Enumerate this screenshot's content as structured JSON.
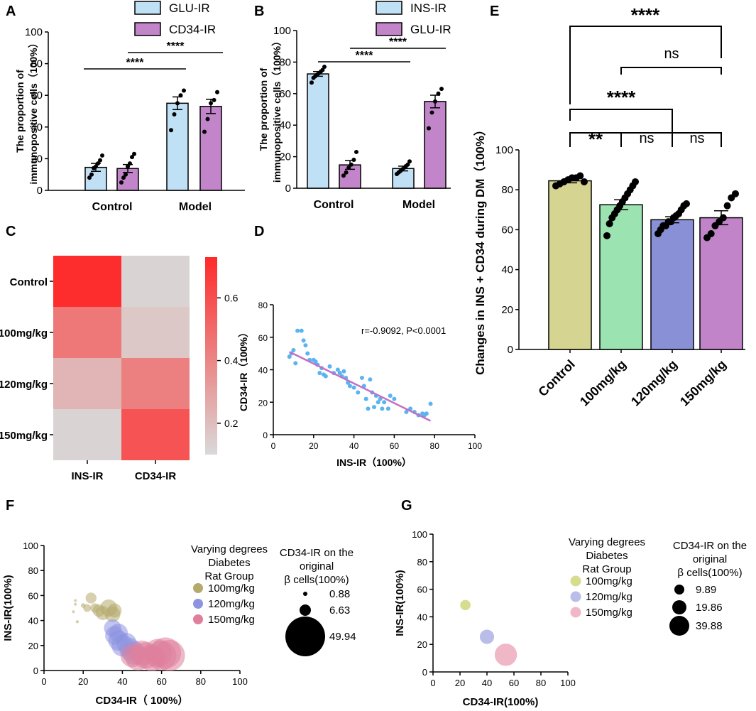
{
  "colors": {
    "glu": "#bfe0f5",
    "cd34": "#c285c9",
    "control_e": "#d6d491",
    "g100": "#9be3b0",
    "g120": "#8a90d6",
    "g150": "#c284c9",
    "heat_high": "#ff2a2a",
    "heat_low": "#d9d9d9",
    "scatter": "#5ab4f0",
    "fit": "#c46ec6",
    "bub100": "#b5aa6e",
    "bub120": "#8d93e0",
    "bub150": "#df7f9d",
    "g_bub100": "#d6dd8f",
    "g_bub120": "#b9bde8",
    "g_bub150": "#f0b8c6"
  },
  "chart_data": [
    {
      "panel": "A",
      "type": "bar",
      "ylabel_line1": "The proportion of",
      "ylabel_line2": "immunopositive cells（100%）",
      "categories": [
        "Control",
        "Model"
      ],
      "ylim": [
        0,
        100
      ],
      "yticks": [
        "0",
        "20",
        "40",
        "60",
        "80",
        "100"
      ],
      "series": [
        {
          "name": "GLU-IR",
          "values": [
            14.5,
            55
          ],
          "errors": [
            2.5,
            4
          ],
          "points": [
            [
              8,
              10,
              14,
              15,
              17,
              19,
              22
            ],
            [
              38,
              48,
              55,
              60,
              63
            ]
          ]
        },
        {
          "name": "CD34-IR",
          "values": [
            13.8,
            53
          ],
          "errors": [
            2.5,
            4.5
          ],
          "points": [
            [
              5,
              8,
              10,
              15,
              17,
              21,
              23
            ],
            [
              37,
              45,
              55,
              57,
              62
            ]
          ]
        }
      ],
      "significance": [
        {
          "label": "****"
        },
        {
          "label": "****"
        }
      ]
    },
    {
      "panel": "B",
      "type": "bar",
      "ylabel_line1": "The proportion of",
      "ylabel_line2": "immunopositive cells（100%）",
      "categories": [
        "Control",
        "Model"
      ],
      "ylim": [
        0,
        100
      ],
      "yticks": [
        "0",
        "20",
        "40",
        "60",
        "80",
        "100"
      ],
      "series": [
        {
          "name": "INS-IR",
          "values": [
            72.5,
            12.5
          ],
          "errors": [
            1.5,
            1.5
          ],
          "points": [
            [
              67,
              70,
              71,
              72,
              73,
              74,
              75,
              77
            ],
            [
              9,
              10,
              11,
              12,
              13,
              14,
              15,
              17
            ]
          ]
        },
        {
          "name": "GLU-IR",
          "values": [
            14.8,
            55
          ],
          "errors": [
            2.8,
            4
          ],
          "points": [
            [
              8,
              10,
              13,
              15,
              18,
              23
            ],
            [
              38,
              48,
              55,
              60,
              63
            ]
          ]
        }
      ],
      "significance": [
        {
          "label": "****"
        },
        {
          "label": "****"
        }
      ]
    },
    {
      "panel": "C",
      "type": "heatmap",
      "rows": [
        "Control",
        "100mg/kg",
        "120mg/kg",
        "150mg/kg"
      ],
      "columns": [
        "INS-IR",
        "CD34-IR"
      ],
      "values": [
        [
          0.72,
          0.12
        ],
        [
          0.45,
          0.16
        ],
        [
          0.23,
          0.42
        ],
        [
          0.12,
          0.58
        ]
      ],
      "colorbar_ticks": [
        "0.2",
        "0.4",
        "0.6"
      ],
      "range": [
        0.1,
        0.73
      ]
    },
    {
      "panel": "D",
      "type": "scatter",
      "xlabel": "INS-IR（100%）",
      "ylabel": "CD34-IR（100%）",
      "xlim": [
        0,
        100
      ],
      "ylim": [
        0,
        80
      ],
      "xticks": [
        "0",
        "20",
        "40",
        "60",
        "80",
        "100"
      ],
      "yticks": [
        "0",
        "20",
        "40",
        "60",
        "80"
      ],
      "annotation": "r=-0.9092,  P<0.0001",
      "fit": {
        "x": [
          8,
          78
        ],
        "y": [
          51,
          8.5
        ]
      },
      "points": [
        [
          8,
          48
        ],
        [
          9,
          50
        ],
        [
          10,
          52
        ],
        [
          11,
          44
        ],
        [
          12,
          64
        ],
        [
          14,
          64
        ],
        [
          15,
          58
        ],
        [
          16,
          55
        ],
        [
          17,
          50
        ],
        [
          18,
          46
        ],
        [
          20,
          46
        ],
        [
          21,
          45
        ],
        [
          22,
          43
        ],
        [
          23,
          38
        ],
        [
          24,
          41
        ],
        [
          25,
          37
        ],
        [
          26,
          36
        ],
        [
          28,
          42
        ],
        [
          30,
          38
        ],
        [
          32,
          40
        ],
        [
          33,
          38
        ],
        [
          34,
          36
        ],
        [
          35,
          39
        ],
        [
          36,
          35
        ],
        [
          37,
          32
        ],
        [
          38,
          30
        ],
        [
          40,
          29
        ],
        [
          42,
          26
        ],
        [
          44,
          35
        ],
        [
          45,
          30
        ],
        [
          46,
          22
        ],
        [
          47,
          16
        ],
        [
          48,
          34
        ],
        [
          49,
          26
        ],
        [
          50,
          17
        ],
        [
          51,
          24
        ],
        [
          52,
          20
        ],
        [
          53,
          22
        ],
        [
          54,
          16
        ],
        [
          55,
          20
        ],
        [
          57,
          16
        ],
        [
          58,
          24
        ],
        [
          60,
          22
        ],
        [
          66,
          14
        ],
        [
          68,
          16
        ],
        [
          70,
          14
        ],
        [
          72,
          12
        ],
        [
          74,
          13
        ],
        [
          75,
          12
        ],
        [
          76,
          13
        ],
        [
          78,
          19
        ]
      ]
    },
    {
      "panel": "E",
      "type": "bar",
      "ylabel": "Changes in INS + CD34 during DM（100%）",
      "categories": [
        "Control",
        "100mg/kg",
        "120mg/kg",
        "150mg/kg"
      ],
      "ylim": [
        0,
        100
      ],
      "yticks": [
        "0",
        "20",
        "40",
        "60",
        "80",
        "100"
      ],
      "values": [
        84.5,
        72.5,
        65,
        66
      ],
      "errors": [
        1,
        2.5,
        1.5,
        3.5
      ],
      "points": [
        [
          82,
          83,
          84,
          85,
          86,
          86,
          87,
          84
        ],
        [
          57,
          63,
          66,
          68,
          70,
          72,
          74,
          76,
          78,
          80,
          82,
          84
        ],
        [
          58,
          60,
          62,
          62,
          64,
          64,
          66,
          67,
          68,
          70,
          72,
          73
        ],
        [
          56,
          58,
          62,
          64,
          66,
          72,
          76,
          78
        ]
      ],
      "significance": [
        {
          "label": "****"
        },
        {
          "label": "ns"
        },
        {
          "label": "****"
        },
        {
          "label": "**"
        },
        {
          "label": "ns"
        },
        {
          "label": "ns"
        }
      ]
    },
    {
      "panel": "F",
      "type": "scatter",
      "xlabel": "CD34-IR（ 100%）",
      "ylabel": "INS-IR(100%)",
      "xlim": [
        0,
        100
      ],
      "ylim": [
        0,
        100
      ],
      "xticks": [
        "0",
        "20",
        "40",
        "60",
        "80",
        "100"
      ],
      "yticks": [
        "0",
        "20",
        "40",
        "60",
        "80",
        "100"
      ],
      "legend_title": [
        "Varying degrees",
        "Diabetes",
        "Rat Group"
      ],
      "groups": [
        "100mg/kg",
        "120mg/kg",
        "150mg/kg"
      ],
      "size_title": [
        "CD34-IR on the",
        "original",
        "β cells(100%)"
      ],
      "size_values": [
        "0.88",
        "6.63",
        "49.94"
      ],
      "points": [
        {
          "g": 0,
          "x": 15,
          "y": 47,
          "s": 2
        },
        {
          "g": 0,
          "x": 16,
          "y": 53,
          "s": 3
        },
        {
          "g": 0,
          "x": 16,
          "y": 56,
          "s": 2
        },
        {
          "g": 0,
          "x": 17,
          "y": 39,
          "s": 4
        },
        {
          "g": 0,
          "x": 20,
          "y": 52,
          "s": 6
        },
        {
          "g": 0,
          "x": 22,
          "y": 50,
          "s": 10
        },
        {
          "g": 0,
          "x": 24,
          "y": 58,
          "s": 14
        },
        {
          "g": 0,
          "x": 26,
          "y": 50,
          "s": 12
        },
        {
          "g": 0,
          "x": 28,
          "y": 48,
          "s": 16
        },
        {
          "g": 0,
          "x": 30,
          "y": 46,
          "s": 18
        },
        {
          "g": 0,
          "x": 33,
          "y": 50,
          "s": 22
        },
        {
          "g": 0,
          "x": 35,
          "y": 45,
          "s": 20
        },
        {
          "g": 0,
          "x": 36,
          "y": 48,
          "s": 18
        },
        {
          "g": 1,
          "x": 35,
          "y": 34,
          "s": 22
        },
        {
          "g": 1,
          "x": 36,
          "y": 28,
          "s": 24
        },
        {
          "g": 1,
          "x": 38,
          "y": 24,
          "s": 26
        },
        {
          "g": 1,
          "x": 40,
          "y": 20,
          "s": 28
        },
        {
          "g": 1,
          "x": 42,
          "y": 22,
          "s": 26
        },
        {
          "g": 1,
          "x": 44,
          "y": 17,
          "s": 28
        },
        {
          "g": 1,
          "x": 46,
          "y": 14,
          "s": 30
        },
        {
          "g": 1,
          "x": 38,
          "y": 30,
          "s": 24
        },
        {
          "g": 2,
          "x": 45,
          "y": 12,
          "s": 30
        },
        {
          "g": 2,
          "x": 48,
          "y": 10,
          "s": 32
        },
        {
          "g": 2,
          "x": 50,
          "y": 14,
          "s": 32
        },
        {
          "g": 2,
          "x": 52,
          "y": 12,
          "s": 34
        },
        {
          "g": 2,
          "x": 55,
          "y": 10,
          "s": 34
        },
        {
          "g": 2,
          "x": 58,
          "y": 14,
          "s": 36
        },
        {
          "g": 2,
          "x": 60,
          "y": 12,
          "s": 38
        },
        {
          "g": 2,
          "x": 62,
          "y": 14,
          "s": 40
        },
        {
          "g": 2,
          "x": 64,
          "y": 12,
          "s": 40
        }
      ]
    },
    {
      "panel": "G",
      "type": "scatter",
      "xlabel": "CD34-IR(100%)",
      "ylabel": "INS-IR(100%)",
      "xlim": [
        0,
        100
      ],
      "ylim": [
        0,
        100
      ],
      "xticks": [
        "0",
        "20",
        "40",
        "60",
        "80",
        "100"
      ],
      "yticks": [
        "0",
        "20",
        "40",
        "60",
        "80",
        "100"
      ],
      "legend_title": [
        "Varying degrees",
        "Diabetes",
        "Rat Group"
      ],
      "groups": [
        "100mg/kg",
        "120mg/kg",
        "150mg/kg"
      ],
      "size_title": [
        "CD34-IR on the",
        "original",
        "β cells(100%)"
      ],
      "size_values": [
        "9.89",
        "19.86",
        "39.88"
      ],
      "points": [
        {
          "g": 0,
          "x": 24,
          "y": 48.5,
          "s": 9.89
        },
        {
          "g": 1,
          "x": 40,
          "y": 25.5,
          "s": 19.86
        },
        {
          "g": 2,
          "x": 54,
          "y": 12.5,
          "s": 39.88
        }
      ]
    }
  ]
}
